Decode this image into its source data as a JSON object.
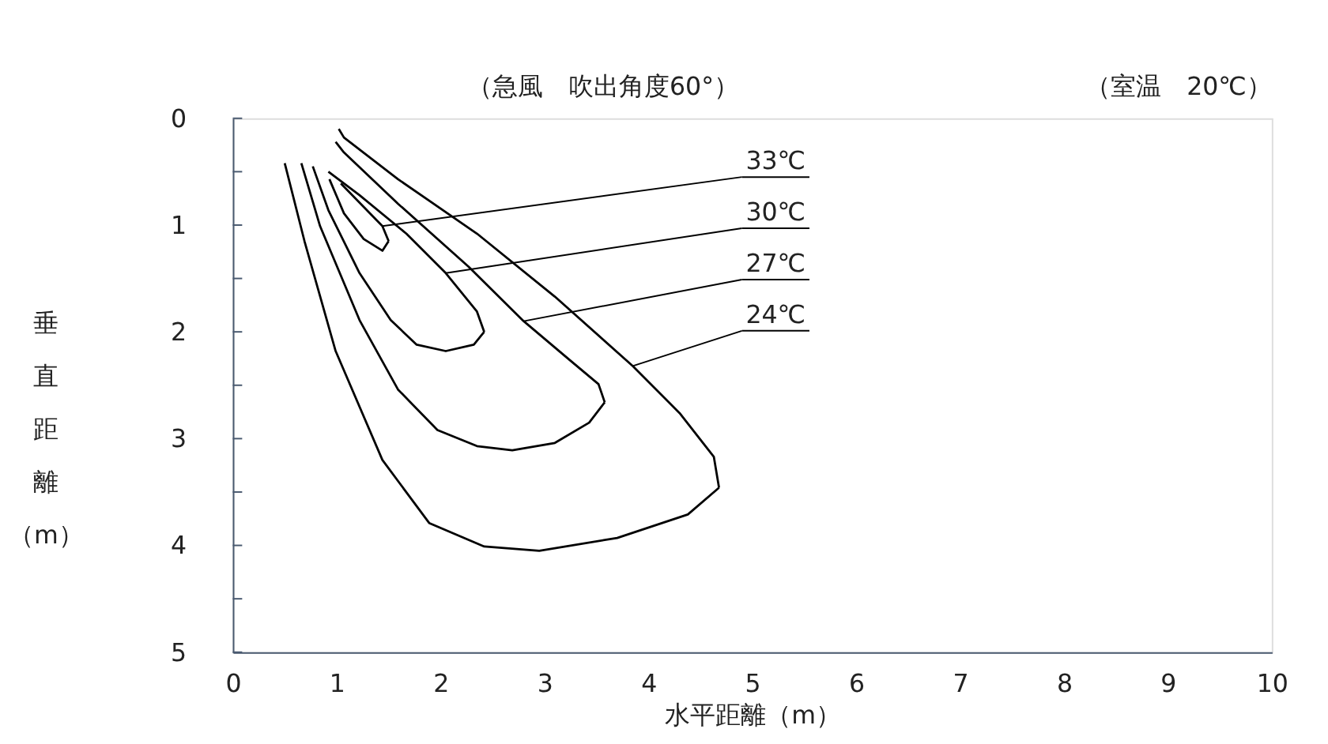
{
  "chart_data": {
    "type": "line",
    "xlabel": "水平距離（m）",
    "ylabel": "垂直距離（m）",
    "xlim": [
      0,
      10
    ],
    "xticks": [
      0,
      1,
      2,
      3,
      4,
      5,
      6,
      7,
      8,
      9,
      10
    ],
    "ylim": [
      5,
      0
    ],
    "yticks": [
      0,
      {
        "value": 0.5,
        "label": null
      },
      1,
      {
        "value": 1.5,
        "label": null
      },
      2,
      {
        "value": 2.5,
        "label": null
      },
      3,
      {
        "value": 3.5,
        "label": null
      },
      4,
      {
        "value": 4.5,
        "label": null
      },
      5
    ],
    "grid": false,
    "legend": false,
    "marker": "none",
    "line_style": "solid",
    "series": [
      {
        "color": "#000000",
        "x": [
          0.93,
          1.07,
          1.26,
          1.44,
          1.5
        ],
        "values": [
          0.57,
          0.89,
          1.13,
          1.24,
          1.15
        ]
      },
      {
        "color": "#000000",
        "x": [
          1.5,
          1.44,
          1.26,
          1.04
        ],
        "values": [
          1.15,
          1.01,
          0.83,
          0.61
        ]
      },
      {
        "color": "#000000",
        "x": [
          0.77,
          0.92,
          1.22,
          1.52,
          1.77,
          2.05,
          2.32,
          2.42
        ],
        "values": [
          0.45,
          0.86,
          1.45,
          1.89,
          2.12,
          2.18,
          2.12,
          2.0
        ]
      },
      {
        "color": "#000000",
        "x": [
          2.42,
          2.35,
          2.05,
          1.67,
          1.22,
          0.92
        ],
        "values": [
          2.0,
          1.81,
          1.45,
          1.08,
          0.72,
          0.5
        ]
      },
      {
        "color": "#000000",
        "x": [
          0.66,
          0.84,
          1.22,
          1.59,
          1.97,
          2.35,
          2.69,
          3.1,
          3.43,
          3.58
        ],
        "values": [
          0.42,
          1.01,
          1.89,
          2.54,
          2.92,
          3.07,
          3.11,
          3.04,
          2.85,
          2.66
        ]
      },
      {
        "color": "#000000",
        "x": [
          3.58,
          3.52,
          3.25,
          2.8,
          2.27,
          1.59,
          1.07,
          0.99
        ],
        "values": [
          2.66,
          2.49,
          2.27,
          1.9,
          1.39,
          0.8,
          0.32,
          0.22
        ]
      },
      {
        "color": "#000000",
        "x": [
          0.5,
          0.69,
          0.99,
          1.44,
          1.89,
          2.42,
          2.95,
          3.7,
          4.38,
          4.68
        ],
        "values": [
          0.42,
          1.15,
          2.18,
          3.2,
          3.79,
          4.01,
          4.05,
          3.93,
          3.71,
          3.46
        ]
      },
      {
        "color": "#000000",
        "x": [
          4.68,
          4.63,
          4.3,
          3.85,
          3.1,
          2.35,
          1.59,
          1.07,
          1.02
        ],
        "values": [
          3.46,
          3.17,
          2.76,
          2.32,
          1.67,
          1.08,
          0.57,
          0.18,
          0.1
        ]
      }
    ],
    "annotations": [
      "（急風　吹出角度60°）",
      "（室温　20℃）",
      {
        "text": "33℃",
        "x": 1.44,
        "y": 1.01
      },
      {
        "text": "30℃",
        "x": 2.05,
        "y": 1.45
      },
      {
        "text": "27℃",
        "x": 2.8,
        "y": 1.9
      },
      {
        "text": "24℃",
        "x": 3.85,
        "y": 2.32
      }
    ]
  }
}
